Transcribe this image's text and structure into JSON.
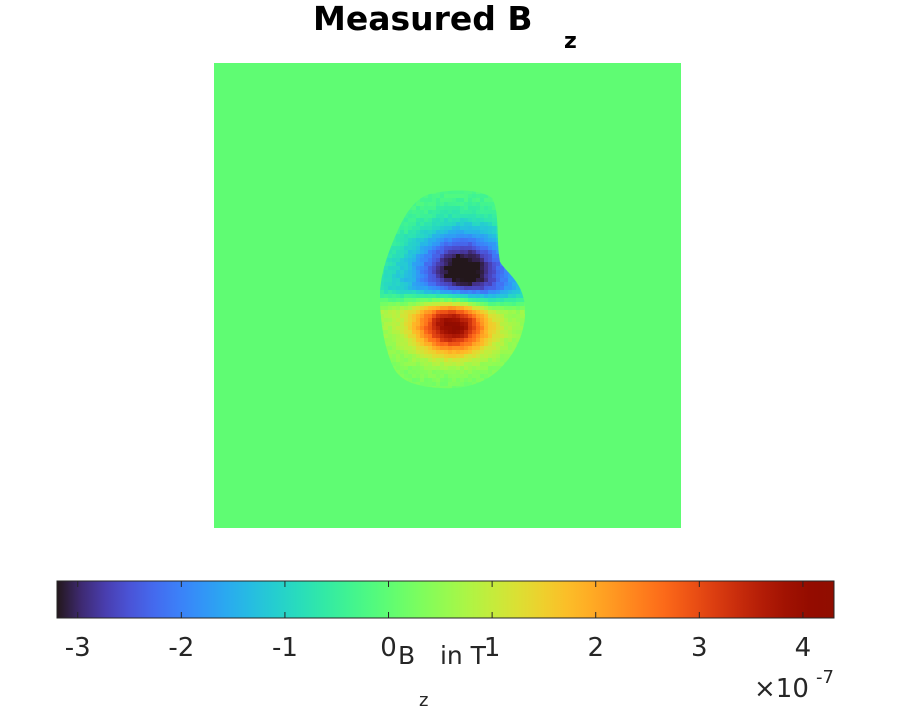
{
  "chart_data": {
    "type": "heatmap",
    "title": "Measured B",
    "title_subscript": "z",
    "colormap": "turbo",
    "background_value": 0,
    "colorbar": {
      "orientation": "horizontal",
      "clim": [
        -3.2,
        4.3
      ],
      "ticks": [
        -3,
        -2,
        -1,
        0,
        1,
        2,
        3,
        4
      ],
      "tick_labels": [
        "-3",
        "-2",
        "-1",
        "0",
        "1",
        "2",
        "3",
        "4"
      ],
      "label": "B",
      "label_subscript": "z",
      "label_suffix": " in T",
      "exponent_prefix": "×10",
      "exponent": "-7"
    },
    "features": [
      {
        "name": "negative pole",
        "peak_value": -3.1
      },
      {
        "name": "positive pole",
        "peak_value": 4.2
      }
    ]
  }
}
